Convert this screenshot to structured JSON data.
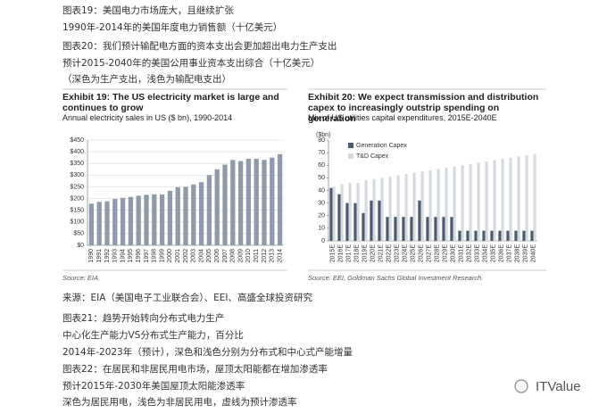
{
  "header_lines": [
    "图表19：美国电力市场庞大，且继续扩张",
    "1990年-2014年的美国年度电力销售额（十亿美元）",
    "图表20：我们预计输配电方面的资本支出会更加超出电力生产支出",
    "预计2015-2040年的美国公用事业资本支出综合（十亿美元）",
    "（深色为生产支出，浅色为输配电支出）"
  ],
  "chart_data": [
    {
      "type": "bar",
      "title": "Exhibit 19: The US electricity market is large and continues to grow",
      "subtitle": "Annual electricity sales in US ($ bn), 1990-2014",
      "categories": [
        "1990",
        "1991",
        "1992",
        "1993",
        "1994",
        "1995",
        "1996",
        "1997",
        "1998",
        "1999",
        "2000",
        "2001",
        "2002",
        "2003",
        "2004",
        "2005",
        "2006",
        "2007",
        "2008",
        "2009",
        "2010",
        "2011",
        "2012",
        "2013",
        "2014"
      ],
      "values": [
        178,
        186,
        188,
        198,
        203,
        207,
        212,
        216,
        218,
        217,
        233,
        248,
        250,
        260,
        270,
        300,
        325,
        345,
        365,
        360,
        370,
        370,
        365,
        375,
        390
      ],
      "color": "#8f9baa",
      "ylim": [
        0,
        450
      ],
      "yticks": [
        {
          "value": 0,
          "label": "$0"
        },
        {
          "value": 50,
          "label": "$50"
        },
        {
          "value": 100,
          "label": "$100"
        },
        {
          "value": 150,
          "label": "$150"
        },
        {
          "value": 200,
          "label": "$200"
        },
        {
          "value": 250,
          "label": "$250"
        },
        {
          "value": 300,
          "label": "$300"
        },
        {
          "value": 350,
          "label": "$350"
        },
        {
          "value": 400,
          "label": "$400"
        },
        {
          "value": 450,
          "label": "$450"
        }
      ],
      "grid": true,
      "source": "Source: EIA."
    },
    {
      "type": "grouped-bar",
      "title": "Exhibit 20: We expect transmission and distribution capex to increasingly outstrip spending on generation",
      "subtitle": "Mix of US utilities capital expenditures, 2015E-2040E",
      "ylabel": "($bn)",
      "categories": [
        "2015E",
        "2016E",
        "2017E",
        "2018E",
        "2019E",
        "2020E",
        "2021E",
        "2022E",
        "2023E",
        "2024E",
        "2025E",
        "2026E",
        "2027E",
        "2028E",
        "2029E",
        "2030E",
        "2031E",
        "2032E",
        "2033E",
        "2034E",
        "2035E",
        "2036E",
        "2037E",
        "2038E",
        "2039E",
        "2040E"
      ],
      "series": [
        {
          "name": "Generation Capex",
          "color": "#4d5b70",
          "values": [
            42,
            37,
            30,
            30,
            22,
            32,
            32,
            19,
            19,
            19,
            19,
            32,
            19,
            19,
            19,
            19,
            8,
            8,
            8,
            8,
            8,
            8,
            8,
            8,
            8,
            8
          ]
        },
        {
          "name": "T&D Capex",
          "color": "#d5dae0",
          "values": [
            43,
            45,
            46,
            46,
            48,
            49,
            50,
            51,
            52,
            53,
            54,
            55,
            56,
            57,
            58,
            59,
            60,
            61,
            62,
            63,
            64,
            65,
            66,
            67,
            68,
            69
          ]
        }
      ],
      "ylim": [
        0,
        80
      ],
      "yticks": [
        0,
        10,
        20,
        30,
        40,
        50,
        60,
        70,
        80
      ],
      "grid": false,
      "legend": "top-left",
      "source": "Source: EEI, Goldman Sachs Global Investment Research."
    }
  ],
  "footer_lines": [
    "来源：EIA（美国电子工业联合会）、EEI、高盛全球投资研究",
    "图表21：趋势开始转向分布式电力生产",
    "中心化生产能力VS分布式生产能力，百分比",
    "2014年-2023年（预计），深色和浅色分别为分布式和中心式产能增量",
    "图表22：在居民和非居民用电市场，屋顶太阳能都在增加渗透率",
    "预计2015年-2030年美国屋顶太阳能渗透率",
    "深色为居民用电，浅色为非居民用电，虚线为预计渗透率"
  ],
  "watermark": "ITValue"
}
